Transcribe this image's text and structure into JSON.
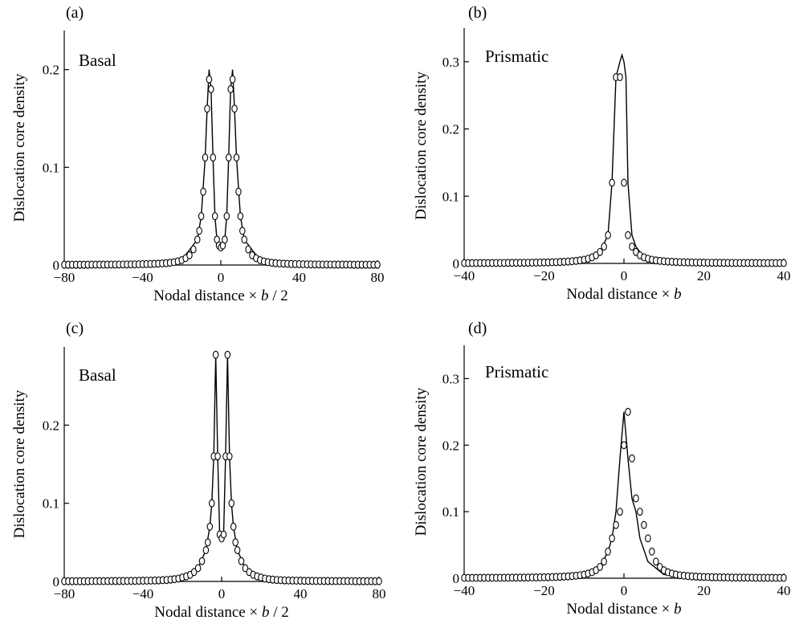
{
  "chart_data": [
    {
      "type": "scatter",
      "panel_label": "(a)",
      "annotation": "Basal",
      "xlabel_prefix": "Nodal distance ×",
      "xlabel_var": "b",
      "xlabel_suffix": "/ 2",
      "ylabel": "Dislocation core density",
      "xlim": [
        -80,
        80
      ],
      "ylim": [
        0,
        0.24
      ],
      "xticks": [
        -80,
        -40,
        0,
        40,
        80
      ],
      "yticks": [
        0,
        0.1,
        0.2
      ],
      "ytick_labels": [
        "0",
        "0.1",
        "0.2"
      ],
      "grid": false,
      "series": [
        {
          "x": [
            -80,
            -78,
            -76,
            -74,
            -72,
            -70,
            -68,
            -66,
            -64,
            -62,
            -60,
            -58,
            -56,
            -54,
            -52,
            -50,
            -48,
            -46,
            -44,
            -42,
            -40,
            -38,
            -36,
            -34,
            -32,
            -30,
            -28,
            -26,
            -24,
            -22,
            -20,
            -18,
            -16,
            -14,
            -12,
            -11,
            -10,
            -9,
            -8,
            -7,
            -6,
            -5,
            -4,
            -3,
            -2,
            -1,
            0,
            1,
            2,
            3,
            4,
            5,
            6,
            7,
            8,
            9,
            10,
            11,
            12,
            14,
            16,
            18,
            20,
            22,
            24,
            26,
            28,
            30,
            32,
            34,
            36,
            38,
            40,
            42,
            44,
            46,
            48,
            50,
            52,
            54,
            56,
            58,
            60,
            62,
            64,
            66,
            68,
            70,
            72,
            74,
            76,
            78,
            80
          ],
          "y": [
            0.0003,
            0.0003,
            0.0003,
            0.0003,
            0.0003,
            0.0003,
            0.0003,
            0.0004,
            0.0004,
            0.0004,
            0.0004,
            0.0004,
            0.0005,
            0.0005,
            0.0005,
            0.0006,
            0.0006,
            0.0007,
            0.0007,
            0.0008,
            0.0009,
            0.001,
            0.0011,
            0.0012,
            0.0014,
            0.0016,
            0.0019,
            0.0023,
            0.0029,
            0.0037,
            0.005,
            0.007,
            0.01,
            0.016,
            0.026,
            0.035,
            0.05,
            0.075,
            0.11,
            0.16,
            0.19,
            0.18,
            0.11,
            0.05,
            0.026,
            0.02,
            0.018,
            0.02,
            0.026,
            0.05,
            0.11,
            0.18,
            0.19,
            0.16,
            0.11,
            0.075,
            0.05,
            0.035,
            0.026,
            0.016,
            0.01,
            0.007,
            0.005,
            0.0037,
            0.0029,
            0.0023,
            0.0019,
            0.0016,
            0.0014,
            0.0012,
            0.0011,
            0.001,
            0.0009,
            0.0008,
            0.0007,
            0.0007,
            0.0006,
            0.0006,
            0.0005,
            0.0005,
            0.0005,
            0.0004,
            0.0004,
            0.0004,
            0.0004,
            0.0004,
            0.0003,
            0.0003,
            0.0003,
            0.0003,
            0.0003,
            0.0003,
            0.0003
          ]
        }
      ],
      "line": {
        "x": [
          -80,
          -40,
          -20,
          -12,
          -10,
          -8,
          -7,
          -6,
          -5,
          -4,
          -3,
          -2,
          -1,
          0,
          1,
          2,
          3,
          4,
          5,
          6,
          7,
          8,
          10,
          12,
          20,
          40,
          80
        ],
        "y": [
          0.0003,
          0.0009,
          0.005,
          0.026,
          0.05,
          0.11,
          0.16,
          0.2,
          0.18,
          0.11,
          0.05,
          0.026,
          0.02,
          0.018,
          0.02,
          0.026,
          0.05,
          0.11,
          0.18,
          0.2,
          0.16,
          0.11,
          0.05,
          0.026,
          0.005,
          0.0009,
          0.0003
        ]
      }
    },
    {
      "type": "scatter",
      "panel_label": "(b)",
      "annotation": "Prismatic",
      "xlabel_prefix": "Nodal distance ×",
      "xlabel_var": "b",
      "xlabel_suffix": "",
      "ylabel": "Dislocation core density",
      "xlim": [
        -40,
        40
      ],
      "ylim": [
        0,
        0.35
      ],
      "xticks": [
        -40,
        -20,
        0,
        20,
        40
      ],
      "yticks": [
        0,
        0.1,
        0.2,
        0.3
      ],
      "ytick_labels": [
        "0",
        "0.1",
        "0.2",
        "0.3"
      ],
      "grid": false,
      "series": [
        {
          "x": [
            -40,
            -39,
            -38,
            -37,
            -36,
            -35,
            -34,
            -33,
            -32,
            -31,
            -30,
            -29,
            -28,
            -27,
            -26,
            -25,
            -24,
            -23,
            -22,
            -21,
            -20,
            -19,
            -18,
            -17,
            -16,
            -15,
            -14,
            -13,
            -12,
            -11,
            -10,
            -9,
            -8,
            -7,
            -6,
            -5,
            -4,
            -3,
            -2,
            -1,
            0,
            1,
            2,
            3,
            4,
            5,
            6,
            7,
            8,
            9,
            10,
            11,
            12,
            13,
            14,
            15,
            16,
            17,
            18,
            19,
            20,
            21,
            22,
            23,
            24,
            25,
            26,
            27,
            28,
            29,
            30,
            31,
            32,
            33,
            34,
            35,
            36,
            37,
            38,
            39,
            40
          ],
          "y": [
            0.0005,
            0.0005,
            0.0005,
            0.0005,
            0.0006,
            0.0006,
            0.0006,
            0.0006,
            0.0007,
            0.0007,
            0.0007,
            0.0008,
            0.0008,
            0.0009,
            0.0009,
            0.001,
            0.001,
            0.0011,
            0.0012,
            0.0013,
            0.0014,
            0.0015,
            0.0017,
            0.0019,
            0.0021,
            0.0024,
            0.0028,
            0.0032,
            0.0038,
            0.0045,
            0.0055,
            0.007,
            0.009,
            0.012,
            0.017,
            0.025,
            0.042,
            0.12,
            0.277,
            0.277,
            0.12,
            0.042,
            0.025,
            0.017,
            0.012,
            0.009,
            0.007,
            0.0055,
            0.0045,
            0.0038,
            0.0032,
            0.0028,
            0.0024,
            0.0021,
            0.0019,
            0.0017,
            0.0015,
            0.0014,
            0.0013,
            0.0012,
            0.0011,
            0.001,
            0.001,
            0.0009,
            0.0009,
            0.0008,
            0.0008,
            0.0007,
            0.0007,
            0.0007,
            0.0006,
            0.0006,
            0.0006,
            0.0006,
            0.0005,
            0.0005,
            0.0005,
            0.0005,
            0.0005,
            0.0005,
            0.0005
          ]
        }
      ],
      "line": {
        "x": [
          -40,
          -20,
          -10,
          -6,
          -4,
          -3,
          -2,
          -1,
          -0.5,
          0,
          0.5,
          1,
          2,
          3,
          4,
          6,
          10,
          20,
          40
        ],
        "y": [
          0.0005,
          0.0014,
          0.0055,
          0.017,
          0.042,
          0.12,
          0.277,
          0.3,
          0.31,
          0.3,
          0.277,
          0.12,
          0.042,
          0.025,
          0.017,
          0.007,
          0.0032,
          0.0011,
          0.0005
        ]
      }
    },
    {
      "type": "scatter",
      "panel_label": "(c)",
      "annotation": "Basal",
      "xlabel_prefix": "Nodal distance ×",
      "xlabel_var": "b",
      "xlabel_suffix": "/ 2",
      "ylabel": "Dislocation core density",
      "xlim": [
        -80,
        80
      ],
      "ylim": [
        0,
        0.3
      ],
      "xticks": [
        -80,
        -40,
        0,
        40,
        80
      ],
      "yticks": [
        0,
        0.1,
        0.2
      ],
      "ytick_labels": [
        "0",
        "0.1",
        "0.2"
      ],
      "grid": false,
      "series": [
        {
          "x": [
            -80,
            -78,
            -76,
            -74,
            -72,
            -70,
            -68,
            -66,
            -64,
            -62,
            -60,
            -58,
            -56,
            -54,
            -52,
            -50,
            -48,
            -46,
            -44,
            -42,
            -40,
            -38,
            -36,
            -34,
            -32,
            -30,
            -28,
            -26,
            -24,
            -22,
            -20,
            -18,
            -16,
            -14,
            -12,
            -10,
            -8,
            -7,
            -6,
            -5,
            -4,
            -3,
            -2,
            -1,
            0,
            1,
            2,
            3,
            4,
            5,
            6,
            7,
            8,
            10,
            12,
            14,
            16,
            18,
            20,
            22,
            24,
            26,
            28,
            30,
            32,
            34,
            36,
            38,
            40,
            42,
            44,
            46,
            48,
            50,
            52,
            54,
            56,
            58,
            60,
            62,
            64,
            66,
            68,
            70,
            72,
            74,
            76,
            78,
            80
          ],
          "y": [
            0.0003,
            0.0003,
            0.0003,
            0.0003,
            0.0003,
            0.0003,
            0.0003,
            0.0004,
            0.0004,
            0.0004,
            0.0004,
            0.0004,
            0.0005,
            0.0005,
            0.0005,
            0.0006,
            0.0006,
            0.0007,
            0.0007,
            0.0008,
            0.0009,
            0.001,
            0.0011,
            0.0012,
            0.0014,
            0.0016,
            0.0019,
            0.0023,
            0.0029,
            0.0037,
            0.005,
            0.0065,
            0.0085,
            0.012,
            0.017,
            0.026,
            0.04,
            0.05,
            0.07,
            0.1,
            0.16,
            0.29,
            0.16,
            0.06,
            0.055,
            0.06,
            0.16,
            0.29,
            0.16,
            0.1,
            0.07,
            0.05,
            0.04,
            0.026,
            0.017,
            0.012,
            0.0085,
            0.0065,
            0.005,
            0.0037,
            0.0029,
            0.0023,
            0.0019,
            0.0016,
            0.0014,
            0.0012,
            0.0011,
            0.001,
            0.0009,
            0.0008,
            0.0007,
            0.0007,
            0.0006,
            0.0006,
            0.0005,
            0.0005,
            0.0005,
            0.0004,
            0.0004,
            0.0004,
            0.0004,
            0.0004,
            0.0003,
            0.0003,
            0.0003,
            0.0003,
            0.0003,
            0.0003,
            0.0003
          ]
        }
      ],
      "line": {
        "x": [
          -80,
          -40,
          -20,
          -12,
          -8,
          -6,
          -5,
          -4,
          -3,
          -2,
          -1,
          0,
          1,
          2,
          3,
          4,
          5,
          6,
          8,
          12,
          20,
          40,
          80
        ],
        "y": [
          0.0003,
          0.0009,
          0.005,
          0.017,
          0.04,
          0.07,
          0.1,
          0.16,
          0.29,
          0.16,
          0.06,
          0.055,
          0.06,
          0.16,
          0.29,
          0.16,
          0.1,
          0.07,
          0.04,
          0.017,
          0.005,
          0.0009,
          0.0003
        ]
      }
    },
    {
      "type": "scatter",
      "panel_label": "(d)",
      "annotation": "Prismatic",
      "xlabel_prefix": "Nodal distance ×",
      "xlabel_var": "b",
      "xlabel_suffix": "",
      "ylabel": "Dislocation core density",
      "xlim": [
        -40,
        40
      ],
      "ylim": [
        0,
        0.35
      ],
      "xticks": [
        -40,
        -20,
        0,
        20,
        40
      ],
      "yticks": [
        0,
        0.1,
        0.2,
        0.3
      ],
      "ytick_labels": [
        "0",
        "0.1",
        "0.2",
        "0.3"
      ],
      "grid": false,
      "series": [
        {
          "x": [
            -40,
            -39,
            -38,
            -37,
            -36,
            -35,
            -34,
            -33,
            -32,
            -31,
            -30,
            -29,
            -28,
            -27,
            -26,
            -25,
            -24,
            -23,
            -22,
            -21,
            -20,
            -19,
            -18,
            -17,
            -16,
            -15,
            -14,
            -13,
            -12,
            -11,
            -10,
            -9,
            -8,
            -7,
            -6,
            -5,
            -4,
            -3,
            -2,
            -1,
            0,
            1,
            2,
            3,
            4,
            5,
            6,
            7,
            8,
            9,
            10,
            11,
            12,
            13,
            14,
            15,
            16,
            17,
            18,
            19,
            20,
            21,
            22,
            23,
            24,
            25,
            26,
            27,
            28,
            29,
            30,
            31,
            32,
            33,
            34,
            35,
            36,
            37,
            38,
            39,
            40
          ],
          "y": [
            0.0005,
            0.0005,
            0.0005,
            0.0005,
            0.0006,
            0.0006,
            0.0006,
            0.0006,
            0.0007,
            0.0007,
            0.0007,
            0.0008,
            0.0008,
            0.0009,
            0.0009,
            0.001,
            0.001,
            0.0011,
            0.0012,
            0.0013,
            0.0014,
            0.0015,
            0.0017,
            0.0019,
            0.0021,
            0.0024,
            0.0028,
            0.0032,
            0.0038,
            0.0045,
            0.0055,
            0.007,
            0.009,
            0.012,
            0.017,
            0.025,
            0.04,
            0.06,
            0.08,
            0.1,
            0.2,
            0.25,
            0.18,
            0.12,
            0.1,
            0.08,
            0.06,
            0.04,
            0.025,
            0.017,
            0.012,
            0.009,
            0.007,
            0.0055,
            0.0045,
            0.0038,
            0.0032,
            0.0028,
            0.0024,
            0.0021,
            0.0019,
            0.0017,
            0.0015,
            0.0014,
            0.0013,
            0.0012,
            0.0011,
            0.001,
            0.001,
            0.0009,
            0.0009,
            0.0008,
            0.0008,
            0.0007,
            0.0007,
            0.0006,
            0.0006,
            0.0006,
            0.0005,
            0.0005,
            0.0005
          ]
        }
      ],
      "line": {
        "x": [
          -40,
          -20,
          -10,
          -6,
          -4,
          -3,
          -2,
          -1,
          0,
          1,
          2,
          3,
          4,
          6,
          10,
          20,
          40
        ],
        "y": [
          0.0005,
          0.0014,
          0.0055,
          0.017,
          0.04,
          0.06,
          0.1,
          0.18,
          0.25,
          0.18,
          0.12,
          0.1,
          0.06,
          0.025,
          0.0055,
          0.0014,
          0.0005
        ]
      }
    }
  ]
}
